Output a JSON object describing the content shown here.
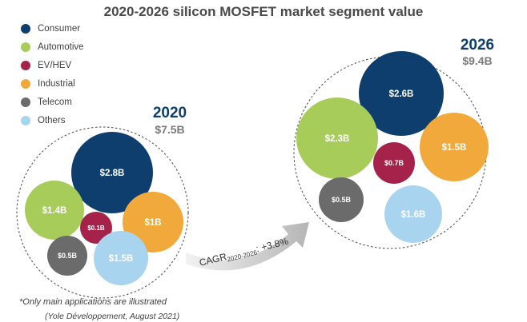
{
  "title": "2020-2026 silicon MOSFET market segment value",
  "legend": [
    {
      "label": "Consumer",
      "color": "#0d3e6e"
    },
    {
      "label": "Automotive",
      "color": "#a8cc5a"
    },
    {
      "label": "EV/HEV",
      "color": "#a5234b"
    },
    {
      "label": "Industrial",
      "color": "#f0a93a"
    },
    {
      "label": "Telecom",
      "color": "#6b6b6b"
    },
    {
      "label": "Others",
      "color": "#a9d4f0"
    }
  ],
  "chart_data": [
    {
      "type": "bubble",
      "year": "2020",
      "total": "$7.5B",
      "segments": [
        {
          "segment": "Consumer",
          "value": 2.8,
          "label": "$2.8B"
        },
        {
          "segment": "Automotive",
          "value": 1.4,
          "label": "$1.4B"
        },
        {
          "segment": "EV/HEV",
          "value": 0.1,
          "label": "$0.1B"
        },
        {
          "segment": "Industrial",
          "value": 1.0,
          "label": "$1B"
        },
        {
          "segment": "Telecom",
          "value": 0.5,
          "label": "$0.5B"
        },
        {
          "segment": "Others",
          "value": 1.5,
          "label": "$1.5B"
        }
      ]
    },
    {
      "type": "bubble",
      "year": "2026",
      "total": "$9.4B",
      "segments": [
        {
          "segment": "Consumer",
          "value": 2.6,
          "label": "$2.6B"
        },
        {
          "segment": "Automotive",
          "value": 2.3,
          "label": "$2.3B"
        },
        {
          "segment": "EV/HEV",
          "value": 0.7,
          "label": "$0.7B"
        },
        {
          "segment": "Industrial",
          "value": 1.5,
          "label": "$1.5B"
        },
        {
          "segment": "Telecom",
          "value": 0.5,
          "label": "$0.5B"
        },
        {
          "segment": "Others",
          "value": 1.6,
          "label": "$1.6B"
        }
      ]
    }
  ],
  "cagr": {
    "prefix": "CAGR",
    "subscript": "2020-2026",
    "value": ": +3.8%"
  },
  "footnote": "*Only main applications are illustrated",
  "source": "(Yole Développement, August 2021)"
}
